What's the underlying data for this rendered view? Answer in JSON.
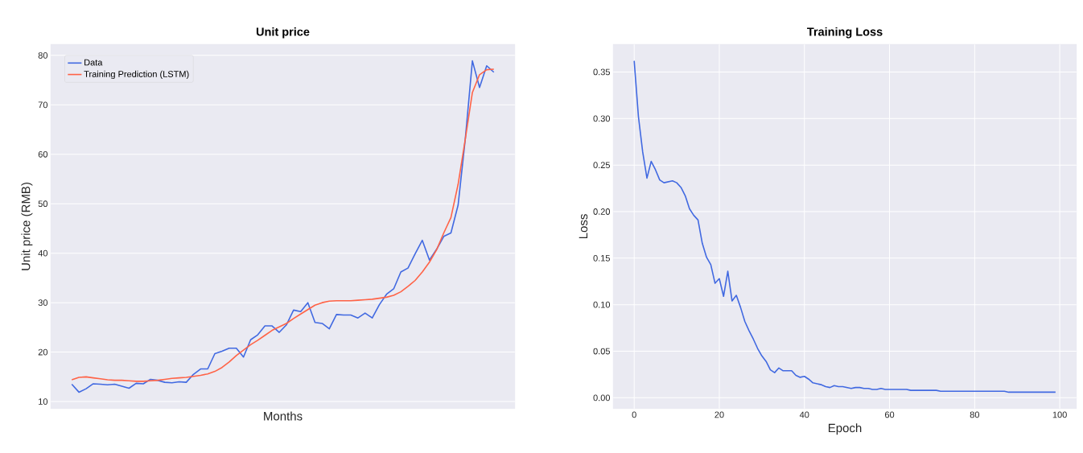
{
  "chart_data": [
    {
      "type": "line",
      "title": "Unit price",
      "xlabel": "Months",
      "ylabel": "Unit price (RMB)",
      "grid": "y",
      "legend": "top left",
      "categories": [
        null,
        null,
        null,
        null,
        null,
        null,
        null,
        null,
        null,
        null,
        null,
        null,
        null,
        null,
        null,
        null,
        null,
        null,
        null,
        null,
        null,
        null,
        null,
        null,
        null,
        null,
        null,
        null,
        null,
        null,
        null,
        null,
        null,
        null,
        null,
        null,
        null,
        null,
        null,
        null,
        null,
        null,
        null,
        null,
        null,
        null,
        null,
        null,
        null,
        null,
        null,
        null,
        null,
        null,
        null,
        null,
        null,
        null,
        null,
        null
      ],
      "ylim": [
        8.55,
        82.25
      ],
      "yticks": [
        10,
        20,
        30,
        40,
        50,
        60,
        70,
        80
      ],
      "series": [
        {
          "name": "Data",
          "color": "#4169e1",
          "values": [
            13.5,
            11.9,
            12.6,
            13.6,
            13.5,
            13.4,
            13.5,
            13.1,
            12.7,
            13.7,
            13.6,
            14.5,
            14.3,
            13.9,
            13.8,
            14.0,
            13.9,
            15.5,
            16.6,
            16.6,
            19.7,
            20.2,
            20.8,
            20.8,
            19.0,
            22.5,
            23.5,
            25.3,
            25.3,
            24.0,
            25.5,
            28.5,
            28.2,
            30.0,
            26.0,
            25.8,
            24.7,
            27.6,
            27.5,
            27.5,
            26.9,
            27.9,
            26.9,
            29.6,
            31.7,
            32.8,
            36.2,
            37.0,
            39.9,
            42.6,
            38.6,
            40.8,
            43.4,
            44.1,
            49.7,
            63.0,
            78.9,
            73.5,
            77.9,
            76.6
          ]
        },
        {
          "name": "Training Prediction (LSTM)",
          "color": "#ff6347",
          "values": [
            14.4,
            14.9,
            15.0,
            14.8,
            14.6,
            14.4,
            14.3,
            14.3,
            14.2,
            14.1,
            14.1,
            14.2,
            14.3,
            14.5,
            14.7,
            14.8,
            14.9,
            15.1,
            15.3,
            15.6,
            16.1,
            16.9,
            18.0,
            19.3,
            20.4,
            21.5,
            22.4,
            23.4,
            24.4,
            25.1,
            25.8,
            26.8,
            27.7,
            28.6,
            29.5,
            30.0,
            30.3,
            30.4,
            30.4,
            30.4,
            30.5,
            30.6,
            30.7,
            30.9,
            31.1,
            31.5,
            32.2,
            33.3,
            34.5,
            36.2,
            38.2,
            40.7,
            44.1,
            47.2,
            53.9,
            63.0,
            72.5,
            76.1,
            77.1,
            77.2
          ]
        }
      ]
    },
    {
      "type": "line",
      "title": "Training Loss",
      "xlabel": "Epoch",
      "ylabel": "Loss",
      "grid": true,
      "x": [
        0,
        1,
        2,
        3,
        4,
        5,
        6,
        7,
        8,
        9,
        10,
        11,
        12,
        13,
        14,
        15,
        16,
        17,
        18,
        19,
        20,
        21,
        22,
        23,
        24,
        25,
        26,
        27,
        28,
        29,
        30,
        31,
        32,
        33,
        34,
        35,
        36,
        37,
        38,
        39,
        40,
        41,
        42,
        43,
        44,
        45,
        46,
        47,
        48,
        49,
        50,
        51,
        52,
        53,
        54,
        55,
        56,
        57,
        58,
        59,
        60,
        61,
        62,
        63,
        64,
        65,
        66,
        67,
        68,
        69,
        70,
        71,
        72,
        73,
        74,
        75,
        76,
        77,
        78,
        79,
        80,
        81,
        82,
        83,
        84,
        85,
        86,
        87,
        88,
        89,
        90,
        91,
        92,
        93,
        94,
        95,
        96,
        97,
        98,
        99
      ],
      "xlim": [
        -4.95,
        103.95
      ],
      "xticks": [
        0,
        20,
        40,
        60,
        80,
        100
      ],
      "ylim": [
        -0.0118,
        0.3798
      ],
      "yticks": [
        {
          "value": 0,
          "label": "0.00"
        },
        {
          "value": 0.05,
          "label": "0.05"
        },
        {
          "value": 0.1,
          "label": "0.10"
        },
        {
          "value": 0.15,
          "label": "0.15"
        },
        {
          "value": 0.2,
          "label": "0.20"
        },
        {
          "value": 0.25,
          "label": "0.25"
        },
        {
          "value": 0.3,
          "label": "0.30"
        },
        {
          "value": 0.35,
          "label": "0.35"
        }
      ],
      "series": [
        {
          "color": "#4169e1",
          "values": [
            0.362,
            0.302,
            0.264,
            0.236,
            0.254,
            0.245,
            0.234,
            0.231,
            0.232,
            0.233,
            0.231,
            0.226,
            0.217,
            0.203,
            0.196,
            0.191,
            0.166,
            0.151,
            0.143,
            0.123,
            0.128,
            0.109,
            0.136,
            0.104,
            0.11,
            0.097,
            0.082,
            0.072,
            0.063,
            0.053,
            0.045,
            0.039,
            0.03,
            0.027,
            0.032,
            0.029,
            0.029,
            0.029,
            0.024,
            0.022,
            0.023,
            0.02,
            0.016,
            0.015,
            0.014,
            0.012,
            0.011,
            0.013,
            0.012,
            0.012,
            0.011,
            0.01,
            0.011,
            0.011,
            0.01,
            0.01,
            0.009,
            0.009,
            0.01,
            0.009,
            0.009,
            0.009,
            0.009,
            0.009,
            0.009,
            0.008,
            0.008,
            0.008,
            0.008,
            0.008,
            0.008,
            0.008,
            0.007,
            0.007,
            0.007,
            0.007,
            0.007,
            0.007,
            0.007,
            0.007,
            0.007,
            0.007,
            0.007,
            0.007,
            0.007,
            0.007,
            0.007,
            0.007,
            0.006,
            0.006,
            0.006,
            0.006,
            0.006,
            0.006,
            0.006,
            0.006,
            0.006,
            0.006,
            0.006,
            0.006
          ]
        }
      ]
    }
  ]
}
